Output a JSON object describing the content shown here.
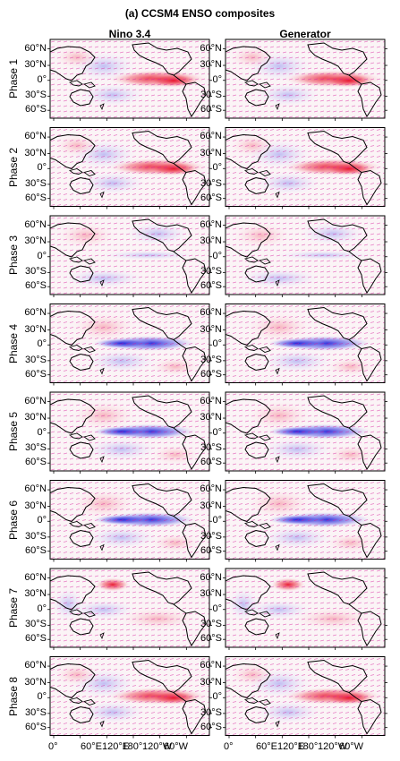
{
  "title": "(a) CCSM4 ENSO composites",
  "columns": [
    "Nino 3.4",
    "Generator"
  ],
  "phases": [
    "Phase 1",
    "Phase 2",
    "Phase 3",
    "Phase 4",
    "Phase 5",
    "Phase 6",
    "Phase 7",
    "Phase 8"
  ],
  "lat_ticks": [
    "60°N",
    "30°N",
    "0°",
    "30°S",
    "60°S"
  ],
  "lon_ticks": [
    "0°",
    "60°E",
    "120°E",
    "180°",
    "120°W",
    "60°W"
  ],
  "colors": {
    "warm": "#e8102a",
    "cool": "#2020e0",
    "vector": "#d6189a",
    "land": "#000000"
  },
  "panels": [
    {
      "phase": "Phase 1",
      "pattern": "warm"
    },
    {
      "phase": "Phase 2",
      "pattern": "warm"
    },
    {
      "phase": "Phase 3",
      "pattern": "weak-cool"
    },
    {
      "phase": "Phase 4",
      "pattern": "cool"
    },
    {
      "phase": "Phase 5",
      "pattern": "cool"
    },
    {
      "phase": "Phase 6",
      "pattern": "cool"
    },
    {
      "phase": "Phase 7",
      "pattern": "weak-warm"
    },
    {
      "phase": "Phase 8",
      "pattern": "warm"
    }
  ]
}
